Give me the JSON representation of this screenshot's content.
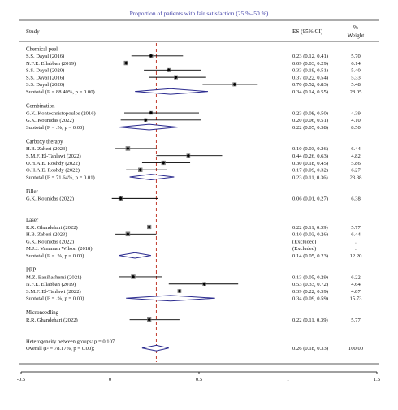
{
  "chart_data": {
    "type": "forest",
    "title": "Proportion of patients with fair satisfaction (25 %–50 %)",
    "columns": {
      "study": "Study",
      "es": "ES (95% CI)",
      "weight_line1": "%",
      "weight_line2": "Weight"
    },
    "xlim": [
      -0.5,
      1.5
    ],
    "xticks": [
      "-0.5",
      "0",
      "0.5",
      "1",
      "1.5"
    ],
    "xtick_values": [
      -0.5,
      0,
      0.5,
      1,
      1.5
    ],
    "reference_line": 0.26,
    "colors": {
      "title": "#3b3ba5",
      "diamond": "#2b2b8f",
      "refline": "#c0392b",
      "marker": "#7f7f7f"
    },
    "rows": [
      {
        "kind": "group",
        "label": "Chemical peel"
      },
      {
        "kind": "study",
        "label": "S.S. Dayal (2016)",
        "es": 0.23,
        "lo": 0.12,
        "hi": 0.41,
        "ci": "0.23 (0.12, 0.41)",
        "weight": "5.70"
      },
      {
        "kind": "study",
        "label": "N.F.E. Ellabban (2019)",
        "es": 0.09,
        "lo": 0.03,
        "hi": 0.29,
        "ci": "0.09 (0.03, 0.29)",
        "weight": "6.14"
      },
      {
        "kind": "study",
        "label": "S.S. Dayal (2020)",
        "es": 0.33,
        "lo": 0.19,
        "hi": 0.51,
        "ci": "0.33 (0.19, 0.51)",
        "weight": "5.40"
      },
      {
        "kind": "study",
        "label": "S.S. Dayal (2016)",
        "es": 0.37,
        "lo": 0.22,
        "hi": 0.54,
        "ci": "0.37 (0.22, 0.54)",
        "weight": "5.33"
      },
      {
        "kind": "study",
        "label": "S.S. Dayal (2020)",
        "es": 0.7,
        "lo": 0.52,
        "hi": 0.83,
        "ci": "0.70 (0.52, 0.83)",
        "weight": "5.48"
      },
      {
        "kind": "subtotal",
        "label": "Subtotal (I² = 88.40%, p = 0.00)",
        "es": 0.34,
        "lo": 0.14,
        "hi": 0.55,
        "ci": "0.34 (0.14, 0.55)",
        "weight": "28.05"
      },
      {
        "kind": "blank"
      },
      {
        "kind": "group",
        "label": "Combination"
      },
      {
        "kind": "study",
        "label": "G.K. Kontochristopoulos (2016)",
        "es": 0.23,
        "lo": 0.08,
        "hi": 0.5,
        "ci": "0.23 (0.08, 0.50)",
        "weight": "4.39"
      },
      {
        "kind": "study",
        "label": "G.K. Kounidas (2022)",
        "es": 0.2,
        "lo": 0.06,
        "hi": 0.51,
        "ci": "0.20 (0.06, 0.51)",
        "weight": "4.10"
      },
      {
        "kind": "subtotal",
        "label": "Subtotal (I² = .%, p = 0.00)",
        "es": 0.22,
        "lo": 0.05,
        "hi": 0.38,
        "ci": "0.22 (0.05, 0.38)",
        "weight": "8.50"
      },
      {
        "kind": "blank"
      },
      {
        "kind": "group",
        "label": "Carboxy therapy"
      },
      {
        "kind": "study",
        "label": "H.B. Zaheri (2023)",
        "es": 0.1,
        "lo": 0.03,
        "hi": 0.26,
        "ci": "0.10 (0.03, 0.26)",
        "weight": "6.44"
      },
      {
        "kind": "study",
        "label": "S.M.F. El-Tahlawi (2022)",
        "es": 0.44,
        "lo": 0.26,
        "hi": 0.63,
        "ci": "0.44 (0.26, 0.63)",
        "weight": "4.82"
      },
      {
        "kind": "study",
        "label": "O.H.A.E. Roshdy (2022)",
        "es": 0.3,
        "lo": 0.18,
        "hi": 0.45,
        "ci": "0.30 (0.18, 0.45)",
        "weight": "5.86"
      },
      {
        "kind": "study",
        "label": "O.H.A.E. Roshdy (2022)",
        "es": 0.17,
        "lo": 0.09,
        "hi": 0.32,
        "ci": "0.17 (0.09, 0.32)",
        "weight": "6.27"
      },
      {
        "kind": "subtotal",
        "label": "Subtotal (I² = 71.64%, p = 0.01)",
        "es": 0.23,
        "lo": 0.11,
        "hi": 0.36,
        "ci": "0.23 (0.11, 0.36)",
        "weight": "23.38"
      },
      {
        "kind": "blank"
      },
      {
        "kind": "group",
        "label": "Filler"
      },
      {
        "kind": "study",
        "label": "G.K. Kounidas (2022)",
        "es": 0.06,
        "lo": 0.01,
        "hi": 0.27,
        "ci": "0.06 (0.01, 0.27)",
        "weight": "6.38"
      },
      {
        "kind": "blank"
      },
      {
        "kind": "blank"
      },
      {
        "kind": "group",
        "label": "Laser"
      },
      {
        "kind": "study",
        "label": "R.R. Ghandehari (2022)",
        "es": 0.22,
        "lo": 0.11,
        "hi": 0.39,
        "ci": "0.22 (0.11, 0.39)",
        "weight": "5.77"
      },
      {
        "kind": "study",
        "label": "H.B. Zaheri (2023)",
        "es": 0.1,
        "lo": 0.03,
        "hi": 0.26,
        "ci": "0.10 (0.03, 0.26)",
        "weight": "6.44"
      },
      {
        "kind": "study",
        "label": "G.K. Kounidas (2022)",
        "ci": "(Excluded)",
        "weight": "."
      },
      {
        "kind": "study",
        "label": "M.J.J. Vanaman Wilson (2018)",
        "ci": "(Excluded)",
        "weight": "."
      },
      {
        "kind": "subtotal",
        "label": "Subtotal (I² = .%, p = 0.00)",
        "es": 0.14,
        "lo": 0.05,
        "hi": 0.23,
        "ci": "0.14 (0.05, 0.23)",
        "weight": "12.20"
      },
      {
        "kind": "blank"
      },
      {
        "kind": "group",
        "label": "PRP"
      },
      {
        "kind": "study",
        "label": "M.Z. Banihashemi (2021)",
        "es": 0.13,
        "lo": 0.05,
        "hi": 0.29,
        "ci": "0.13 (0.05, 0.29)",
        "weight": "6.22"
      },
      {
        "kind": "study",
        "label": "N.F.E. Ellabban (2019)",
        "es": 0.53,
        "lo": 0.33,
        "hi": 0.72,
        "ci": "0.53 (0.33, 0.72)",
        "weight": "4.64"
      },
      {
        "kind": "study",
        "label": "S.M.F. El-Tahlawi (2022)",
        "es": 0.39,
        "lo": 0.22,
        "hi": 0.59,
        "ci": "0.39 (0.22, 0.59)",
        "weight": "4.87"
      },
      {
        "kind": "subtotal",
        "label": "Subtotal (I² = .%, p = 0.00)",
        "es": 0.34,
        "lo": 0.09,
        "hi": 0.59,
        "ci": "0.34 (0.09, 0.59)",
        "weight": "15.73"
      },
      {
        "kind": "blank"
      },
      {
        "kind": "group",
        "label": "Microneedling"
      },
      {
        "kind": "study",
        "label": "R.R. Ghandehari (2022)",
        "es": 0.22,
        "lo": 0.11,
        "hi": 0.39,
        "ci": "0.22 (0.11, 0.39)",
        "weight": "5.77"
      },
      {
        "kind": "blank"
      },
      {
        "kind": "blank"
      },
      {
        "kind": "text",
        "label": "Heterogeneity between groups: p = 0.107"
      },
      {
        "kind": "overall",
        "label": "Overall (I² = 78.17%, p = 0.00);",
        "es": 0.26,
        "lo": 0.18,
        "hi": 0.33,
        "ci": "0.26 (0.18, 0.33)",
        "weight": "100.00"
      }
    ]
  }
}
